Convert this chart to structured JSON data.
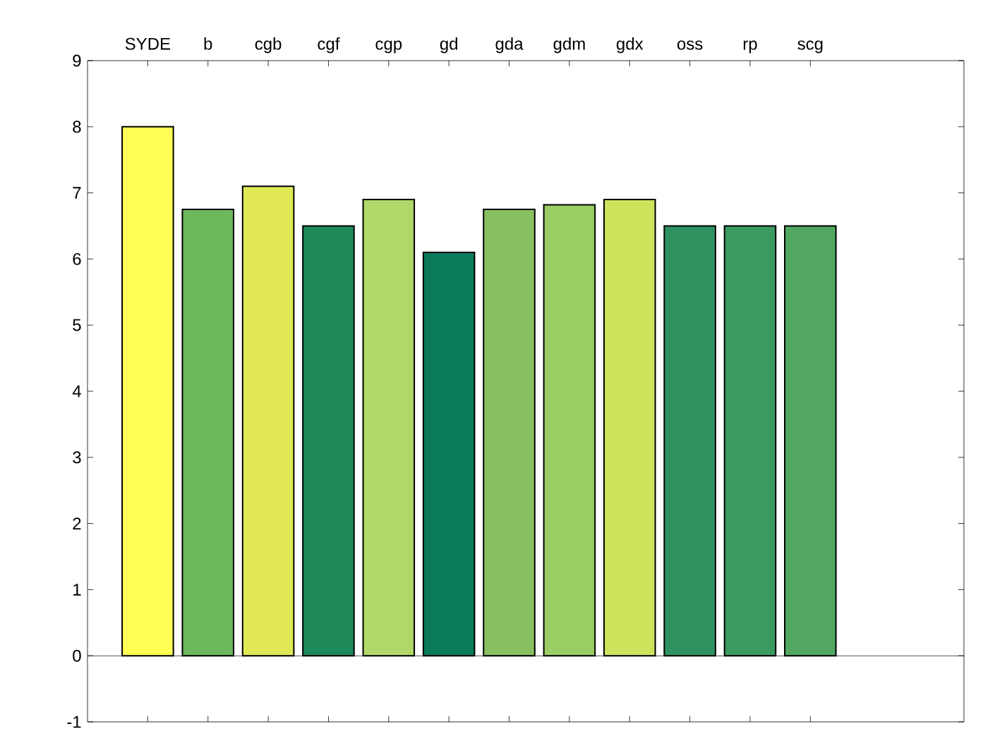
{
  "chart_data": {
    "type": "bar",
    "categories": [
      "SYDE",
      "b",
      "cgb",
      "cgf",
      "cgp",
      "gd",
      "gda",
      "gdm",
      "gdx",
      "oss",
      "rp",
      "scg"
    ],
    "values": [
      8.0,
      6.75,
      7.1,
      6.5,
      6.9,
      6.1,
      6.75,
      6.82,
      6.9,
      6.5,
      6.5,
      6.5
    ],
    "colors": [
      "#ffff55",
      "#6cb85c",
      "#e0e855",
      "#1e8a5a",
      "#b0d868",
      "#0a7a5a",
      "#88c060",
      "#9acd64",
      "#cce45c",
      "#2e9260",
      "#3a9a60",
      "#52a860"
    ],
    "ylim": [
      -1,
      9
    ],
    "yticks": [
      -1,
      0,
      1,
      2,
      3,
      4,
      5,
      6,
      7,
      8,
      9
    ],
    "ref_lines": [
      {
        "axis": "y",
        "value": 0,
        "color": "#000000"
      }
    ]
  }
}
